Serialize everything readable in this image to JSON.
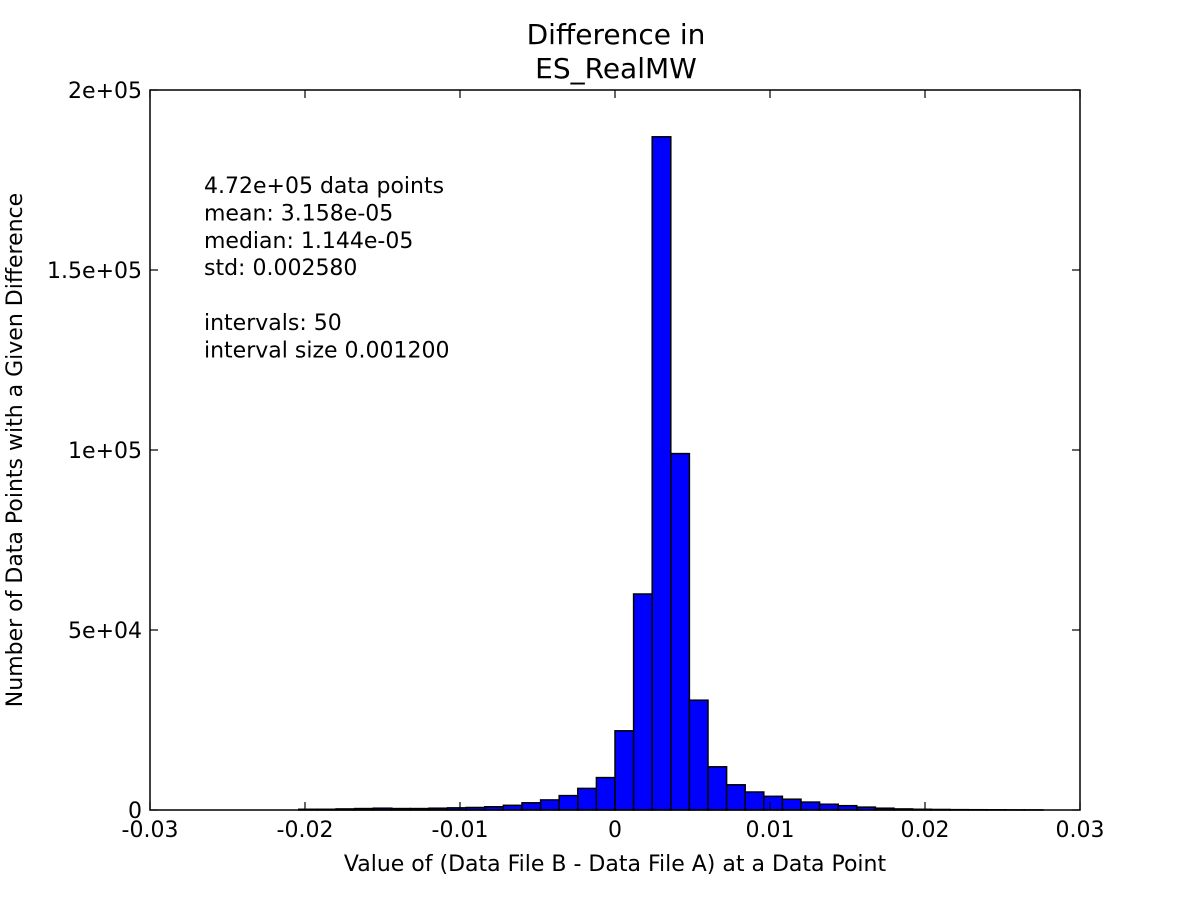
{
  "chart_data": {
    "type": "bar",
    "title_lines": [
      "Difference in",
      "ES_RealMW"
    ],
    "xlabel": "Value of (Data File B - Data File A) at a Data Point",
    "ylabel": "Number of Data Points with a Given Difference",
    "xlim": [
      -0.03,
      0.03
    ],
    "ylim": [
      0,
      200000
    ],
    "x_ticks": [
      {
        "value": -0.03,
        "label": "-0.03"
      },
      {
        "value": -0.02,
        "label": "-0.02"
      },
      {
        "value": -0.01,
        "label": "-0.01"
      },
      {
        "value": 0,
        "label": "0"
      },
      {
        "value": 0.01,
        "label": "0.01"
      },
      {
        "value": 0.02,
        "label": "0.02"
      },
      {
        "value": 0.03,
        "label": "0.03"
      }
    ],
    "y_ticks": [
      {
        "value": 0,
        "label": "0"
      },
      {
        "value": 50000,
        "label": "5e+04"
      },
      {
        "value": 100000,
        "label": "1e+05"
      },
      {
        "value": 150000,
        "label": "1.5e+05"
      },
      {
        "value": 200000,
        "label": "2e+05"
      }
    ],
    "bar_color": "#0000ff",
    "bin_width": 0.0012,
    "bin_starts": [
      -0.0204,
      -0.0192,
      -0.018,
      -0.0168,
      -0.0156,
      -0.0144,
      -0.0132,
      -0.012,
      -0.0108,
      -0.0096,
      -0.0084,
      -0.0072,
      -0.006,
      -0.0048,
      -0.0036,
      -0.0024,
      -0.0012,
      0.0,
      0.0012,
      0.0024,
      0.0036,
      0.0048,
      0.006,
      0.0072,
      0.0084,
      0.0096,
      0.0108,
      0.012,
      0.0132,
      0.0144,
      0.0156,
      0.0168,
      0.018,
      0.0192,
      0.0204,
      0.0216,
      0.0228,
      0.024,
      0.0252,
      0.0264
    ],
    "bin_starts_note": "",
    "counts": [
      200,
      200,
      300,
      400,
      500,
      400,
      400,
      500,
      600,
      700,
      900,
      1300,
      2000,
      2800,
      4000,
      6000,
      9000,
      22000,
      60000,
      187000,
      99000,
      30500,
      12000,
      7000,
      5000,
      3800,
      3000,
      2200,
      1600,
      1200,
      800,
      500,
      300,
      200,
      150,
      100,
      80,
      60,
      40,
      30
    ],
    "annotation_lines": [
      "4.72e+05 data points",
      "mean: 3.158e-05",
      "median: 1.144e-05",
      "std: 0.002580",
      "",
      "intervals: 50",
      "interval size 0.001200"
    ]
  }
}
